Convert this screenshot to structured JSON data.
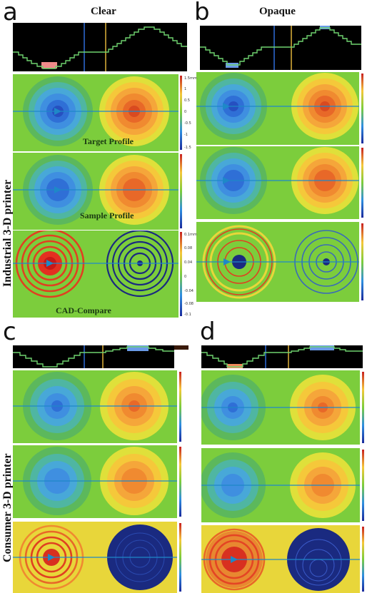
{
  "panels": {
    "a": {
      "letter": "a",
      "title": "Clear"
    },
    "b": {
      "letter": "b",
      "title": "Opaque"
    },
    "c": {
      "letter": "c"
    },
    "d": {
      "letter": "d"
    }
  },
  "row_labels": {
    "industrial": "Industrial 3-D printer",
    "consumer": "Consumer 3-D printer"
  },
  "overlay_labels": {
    "target": "Target Profile",
    "sample": "Sample Profile",
    "cad": "CAD-Compare"
  },
  "scales": {
    "profile": {
      "top": "1.5mm",
      "ticks": [
        "1",
        "0.5",
        "0",
        "-0.5",
        "-1",
        "-1.5"
      ]
    },
    "cad": {
      "top": "0.1mm",
      "ticks": [
        "0.08",
        "0.04",
        "0",
        "-0.04",
        "-0.08",
        "-0.1"
      ]
    }
  },
  "colors": {
    "background_green": "#7ccd3c",
    "cad_background_yellow": "#e8d63a",
    "trace_green": "#6fd26f",
    "cursor_blue": "#2e6cd8",
    "cursor_yellow": "#e0b23a",
    "scan_line": "#1e88c8"
  }
}
